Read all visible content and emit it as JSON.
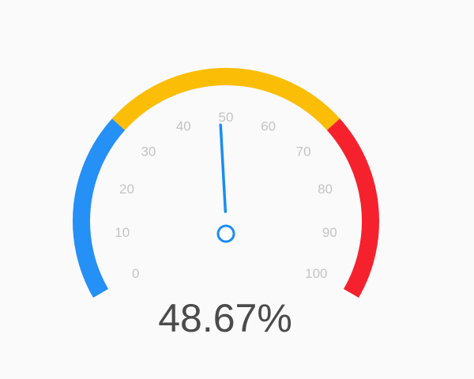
{
  "chart_data": {
    "type": "gauge",
    "min": 0,
    "max": 100,
    "value": 48.67,
    "value_label": "48.67%",
    "ticks": [
      {
        "value": 0,
        "label": "0"
      },
      {
        "value": 10,
        "label": "10"
      },
      {
        "value": 20,
        "label": "20"
      },
      {
        "value": 30,
        "label": "30"
      },
      {
        "value": 40,
        "label": "40"
      },
      {
        "value": 50,
        "label": "50"
      },
      {
        "value": 60,
        "label": "60"
      },
      {
        "value": 70,
        "label": "70"
      },
      {
        "value": 80,
        "label": "80"
      },
      {
        "value": 90,
        "label": "90"
      },
      {
        "value": 100,
        "label": "100"
      }
    ],
    "bands": [
      {
        "from": 0,
        "to": 30,
        "color": "#2590f5"
      },
      {
        "from": 30,
        "to": 70,
        "color": "#fbbd05"
      },
      {
        "from": 70,
        "to": 100,
        "color": "#f5222e"
      }
    ],
    "needle_color": "#1a8cf2"
  }
}
